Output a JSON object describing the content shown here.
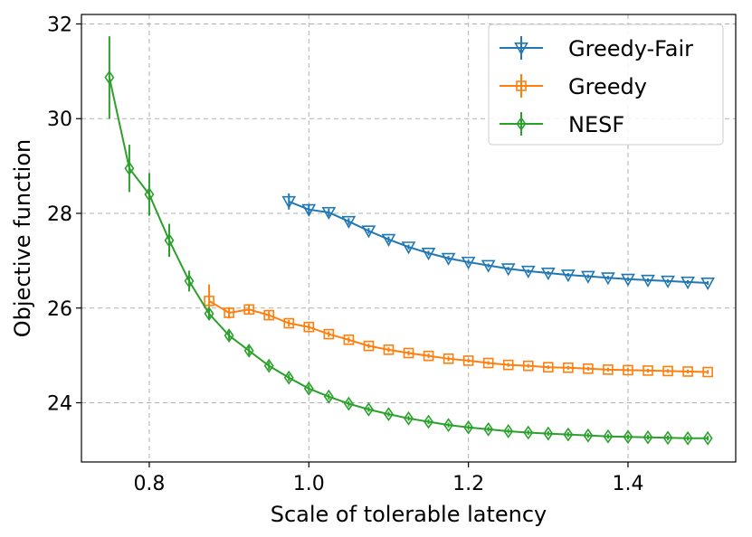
{
  "chart_data": {
    "type": "line",
    "xlabel": "Scale of tolerable latency",
    "ylabel": "Objective function",
    "xlim": [
      0.715,
      1.535
    ],
    "ylim": [
      22.75,
      32.2
    ],
    "xticks": [
      0.8,
      1.0,
      1.2,
      1.4
    ],
    "xtick_labels": [
      "0.8",
      "1.0",
      "1.2",
      "1.4"
    ],
    "yticks": [
      24,
      26,
      28,
      30,
      32
    ],
    "ytick_labels": [
      "24",
      "26",
      "28",
      "30",
      "32"
    ],
    "grid": true,
    "legend_position": "top-right",
    "series": [
      {
        "name": "Greedy-Fair",
        "color": "#1f77b4",
        "marker": "triangle-down",
        "x": [
          0.975,
          1.0,
          1.025,
          1.05,
          1.075,
          1.1,
          1.125,
          1.15,
          1.175,
          1.2,
          1.225,
          1.25,
          1.275,
          1.3,
          1.325,
          1.35,
          1.375,
          1.4,
          1.425,
          1.45,
          1.475,
          1.5
        ],
        "y": [
          28.25,
          28.08,
          28.02,
          27.83,
          27.63,
          27.45,
          27.29,
          27.16,
          27.05,
          26.97,
          26.9,
          26.83,
          26.78,
          26.74,
          26.7,
          26.67,
          26.64,
          26.61,
          26.59,
          26.57,
          26.55,
          26.53
        ],
        "err": [
          0.17,
          0.12,
          0.08,
          0.07,
          0.06,
          0.06,
          0.05,
          0.05,
          0.05,
          0.05,
          0.04,
          0.04,
          0.04,
          0.04,
          0.04,
          0.04,
          0.04,
          0.04,
          0.04,
          0.04,
          0.04,
          0.04
        ]
      },
      {
        "name": "Greedy",
        "color": "#ff7f0e",
        "marker": "square",
        "x": [
          0.875,
          0.9,
          0.925,
          0.95,
          0.975,
          1.0,
          1.025,
          1.05,
          1.075,
          1.1,
          1.125,
          1.15,
          1.175,
          1.2,
          1.225,
          1.25,
          1.275,
          1.3,
          1.325,
          1.35,
          1.375,
          1.4,
          1.425,
          1.45,
          1.475,
          1.5
        ],
        "y": [
          26.15,
          25.9,
          25.97,
          25.85,
          25.68,
          25.6,
          25.45,
          25.33,
          25.2,
          25.12,
          25.05,
          24.99,
          24.93,
          24.89,
          24.84,
          24.8,
          24.78,
          24.75,
          24.74,
          24.72,
          24.7,
          24.69,
          24.68,
          24.67,
          24.66,
          24.65
        ],
        "err": [
          0.35,
          0.12,
          0.1,
          0.08,
          0.07,
          0.07,
          0.06,
          0.06,
          0.05,
          0.05,
          0.05,
          0.05,
          0.05,
          0.04,
          0.04,
          0.04,
          0.04,
          0.04,
          0.04,
          0.04,
          0.04,
          0.04,
          0.04,
          0.04,
          0.04,
          0.04
        ]
      },
      {
        "name": "NESF",
        "color": "#2ca02c",
        "marker": "diamond",
        "x": [
          0.75,
          0.775,
          0.8,
          0.825,
          0.85,
          0.875,
          0.9,
          0.925,
          0.95,
          0.975,
          1.0,
          1.025,
          1.05,
          1.075,
          1.1,
          1.125,
          1.15,
          1.175,
          1.2,
          1.225,
          1.25,
          1.275,
          1.3,
          1.325,
          1.35,
          1.375,
          1.4,
          1.425,
          1.45,
          1.475,
          1.5
        ],
        "y": [
          30.87,
          28.95,
          28.4,
          27.43,
          26.57,
          25.88,
          25.42,
          25.1,
          24.78,
          24.53,
          24.3,
          24.13,
          23.98,
          23.86,
          23.76,
          23.67,
          23.6,
          23.53,
          23.48,
          23.44,
          23.4,
          23.37,
          23.35,
          23.33,
          23.31,
          23.29,
          23.28,
          23.27,
          23.26,
          23.25,
          23.25
        ],
        "err": [
          0.87,
          0.5,
          0.45,
          0.35,
          0.22,
          0.12,
          0.1,
          0.09,
          0.08,
          0.07,
          0.07,
          0.06,
          0.06,
          0.05,
          0.05,
          0.05,
          0.05,
          0.05,
          0.05,
          0.05,
          0.05,
          0.05,
          0.05,
          0.05,
          0.05,
          0.05,
          0.05,
          0.05,
          0.05,
          0.05,
          0.05
        ]
      }
    ]
  }
}
